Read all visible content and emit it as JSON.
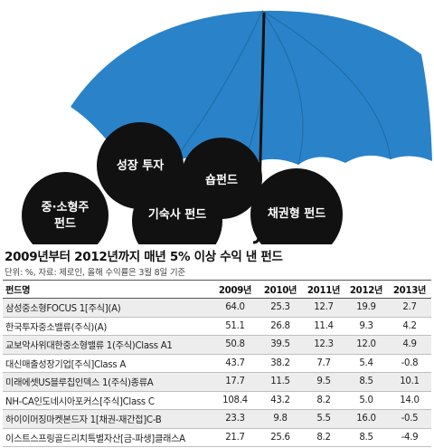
{
  "illustration": {
    "umbrella_color": "#2a83c9",
    "ball_color": "#111111",
    "balls": [
      {
        "label": "성장 투자"
      },
      {
        "label": "숍펀드"
      },
      {
        "label": "중·소형주",
        "label2": "펀드"
      },
      {
        "label": "기숙사 펀드"
      },
      {
        "label": "채권형 펀드"
      }
    ]
  },
  "chart_data": {
    "type": "table",
    "title": "2009년부터 2012년까지 매년 5% 이상 수익 낸 펀드",
    "subtitle": "단위: %, 자료: 제로인, 올해 수익률은 3월 8일 기준",
    "columns": [
      "펀드명",
      "2009년",
      "2010년",
      "2011년",
      "2012년",
      "2013년"
    ],
    "rows": [
      [
        "삼성중소형FOCUS 1[주식](A)",
        "64.0",
        "25.3",
        "12.7",
        "19.9",
        "2.7"
      ],
      [
        "한국투자중소밸류(주식)(A)",
        "51.1",
        "26.8",
        "11.4",
        "9.3",
        "4.2"
      ],
      [
        "교보악사위대한중소형밸류 1(주식)Class A1",
        "50.8",
        "39.5",
        "12.3",
        "12.0",
        "4.9"
      ],
      [
        "대신매출성장기업[주식]Class A",
        "43.7",
        "38.2",
        "7.7",
        "5.4",
        "-0.8"
      ],
      [
        "미래에셋US블루칩인덱스 1(주식)종류A",
        "17.7",
        "11.5",
        "9.5",
        "8.5",
        "10.1"
      ],
      [
        "NH-CA인도네시아포커스[주식]Class C",
        "108.4",
        "43.2",
        "8.2",
        "5.0",
        "14.0"
      ],
      [
        "하이이머징마켓본드자 1[채권-재간접]C-B",
        "23.3",
        "9.8",
        "5.5",
        "16.0",
        "-0.5"
      ],
      [
        "이스트스프링골드리치특별자산[금-파생]클래스A",
        "21.7",
        "25.6",
        "8.2",
        "8.5",
        "-4.9"
      ]
    ]
  }
}
